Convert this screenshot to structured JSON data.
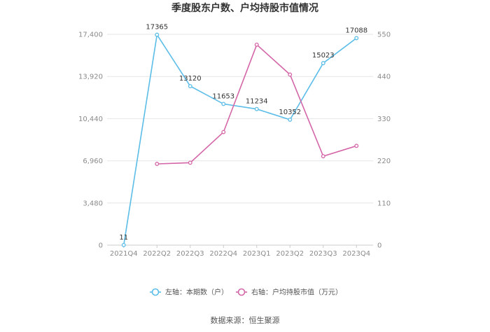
{
  "chart_data": {
    "type": "line",
    "title": "季度股东户数、户均持股市值情况",
    "categories": [
      "2021Q4",
      "2022Q2",
      "2022Q3",
      "2022Q4",
      "2023Q1",
      "2023Q2",
      "2023Q3",
      "2023Q4"
    ],
    "left_axis": {
      "min": 0,
      "max": 17400,
      "ticks": [
        "0",
        "3,480",
        "6,960",
        "10,440",
        "13,920",
        "17,400"
      ]
    },
    "right_axis": {
      "min": 0,
      "max": 550,
      "ticks": [
        "0",
        "110",
        "220",
        "330",
        "440",
        "550"
      ]
    },
    "series": [
      {
        "name": "左轴：本期数（户）",
        "axis": "left",
        "color": "#5bbde8",
        "values": [
          11,
          17365,
          13120,
          11653,
          11234,
          10352,
          15023,
          17088
        ],
        "labels": [
          "11",
          "17365",
          "13120",
          "11653",
          "11234",
          "10352",
          "15023",
          "17088"
        ]
      },
      {
        "name": "右轴：户均持股市值（万元）",
        "axis": "right",
        "color": "#d466a8",
        "values": [
          null,
          212,
          215,
          295,
          523,
          445,
          232,
          259
        ]
      }
    ],
    "grid": true,
    "legend": "bottom"
  },
  "source": "数据来源：恒生聚源"
}
